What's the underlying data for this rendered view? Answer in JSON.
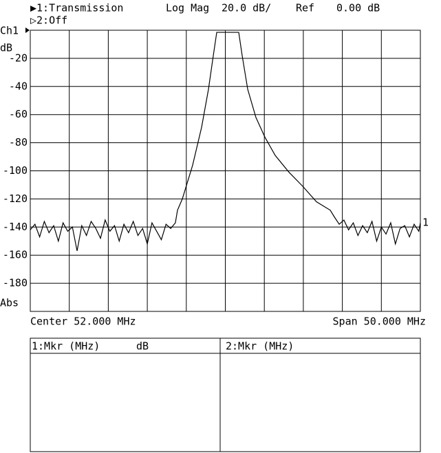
{
  "header": {
    "format": "Log Mag",
    "scale": "20.0 dB/",
    "ref_label": "Ref",
    "ref_value": "0.00 dB",
    "trace2": "▷2:Off"
  },
  "chart_data": {
    "type": "line",
    "channel": "Ch1",
    "y_unit": "dB",
    "display": "Abs",
    "trace_label": "1",
    "center": "Center 52.000 MHz",
    "span": "Span 50.000 MHz",
    "xlim": [
      27,
      77
    ],
    "ylim": [
      -200,
      0
    ],
    "yticks": [
      -20,
      -40,
      -60,
      -80,
      -100,
      -120,
      -140,
      -160,
      -180
    ],
    "grid": true,
    "x": [
      27.0,
      27.6,
      28.2,
      28.8,
      29.4,
      30.0,
      30.6,
      31.2,
      31.8,
      32.4,
      33.0,
      33.6,
      34.2,
      34.8,
      35.4,
      36.0,
      36.6,
      37.2,
      37.8,
      38.4,
      39.0,
      39.6,
      40.2,
      40.8,
      41.4,
      42.0,
      42.6,
      43.2,
      43.8,
      44.4,
      45.0,
      45.6,
      45.87,
      46.49,
      47.81,
      48.96,
      49.84,
      50.46,
      50.9,
      53.72,
      54.16,
      54.87,
      55.92,
      57.07,
      58.39,
      60.16,
      61.92,
      63.68,
      65.45,
      66.0,
      66.6,
      67.2,
      67.8,
      68.4,
      69.0,
      69.6,
      70.2,
      70.8,
      71.4,
      72.0,
      72.6,
      73.2,
      73.8,
      74.4,
      75.0,
      75.6,
      76.2,
      76.8,
      77.0
    ],
    "series": [
      {
        "name": "▶1:Transmission",
        "color": "#000000",
        "values": [
          -142,
          -138,
          -147,
          -136,
          -144,
          -139,
          -150,
          -137,
          -143,
          -140,
          -157,
          -139,
          -146,
          -136,
          -141,
          -148,
          -135,
          -143,
          -139,
          -150,
          -138,
          -144,
          -136,
          -146,
          -141,
          -152,
          -137,
          -143,
          -149,
          -138,
          -141,
          -137,
          -128,
          -120,
          -96,
          -69,
          -42,
          -18,
          -1.5,
          -1.5,
          -18,
          -42,
          -62,
          -76,
          -89,
          -101,
          -111,
          -122,
          -128,
          -133,
          -138,
          -135,
          -142,
          -137,
          -146,
          -139,
          -144,
          -136,
          -150,
          -140,
          -145,
          -137,
          -152,
          -141,
          -139,
          -147,
          -138,
          -143,
          -137
        ]
      }
    ]
  },
  "marker_table": {
    "col1": "1:Mkr (MHz)",
    "col1_unit": "dB",
    "col2": "2:Mkr (MHz)"
  }
}
